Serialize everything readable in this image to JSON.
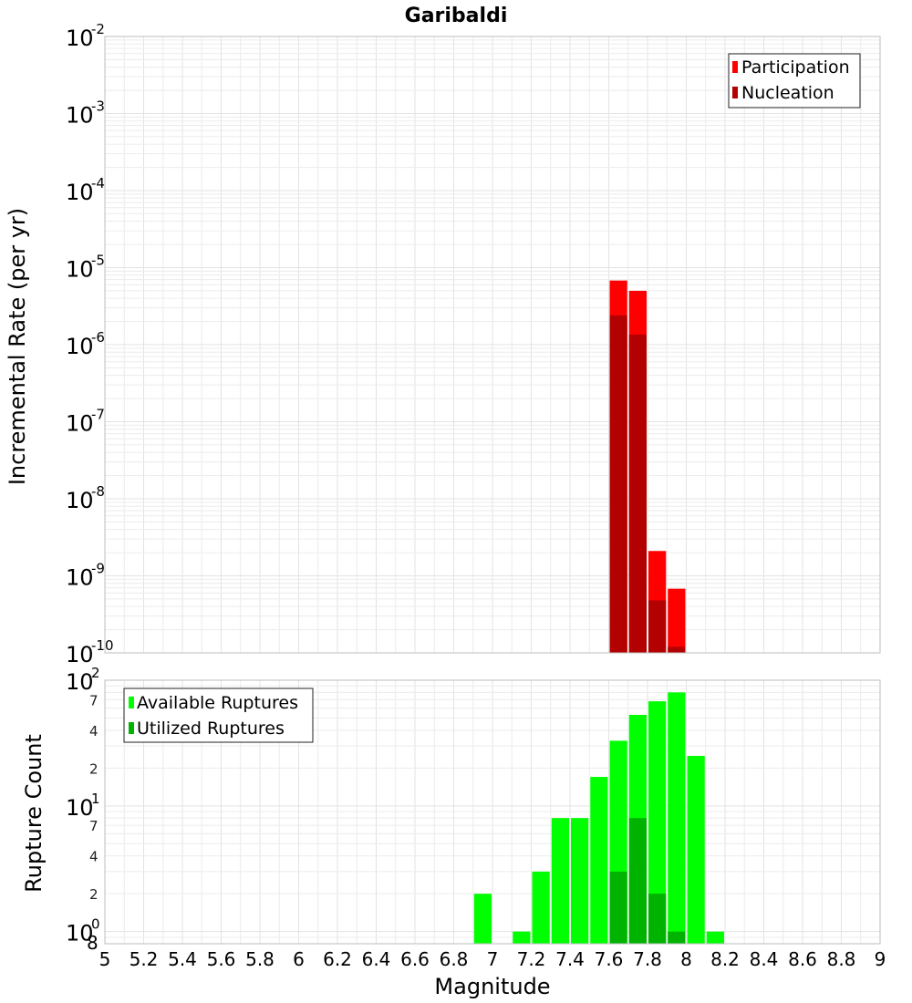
{
  "chart_data": [
    {
      "type": "bar",
      "title": "Garibaldi",
      "xlabel": "",
      "ylabel": "Incremental Rate (per yr)",
      "yscale": "log",
      "ylim": [
        1e-10,
        0.01
      ],
      "xlim": [
        5,
        9
      ],
      "bin_width": 0.1,
      "grid": true,
      "legend_position": "top-right",
      "y_decades": [
        -10,
        -9,
        -8,
        -7,
        -6,
        -5,
        -4,
        -3,
        -2
      ],
      "series": [
        {
          "name": "Participation",
          "color": "#ff0000",
          "x": [
            7.65,
            7.75,
            7.85,
            7.95
          ],
          "values": [
            6.8e-06,
            5e-06,
            2.1e-09,
            6.8e-10
          ]
        },
        {
          "name": "Nucleation",
          "color": "#b30000",
          "x": [
            7.65,
            7.75,
            7.85,
            7.95
          ],
          "values": [
            2.4e-06,
            1.35e-06,
            4.8e-10,
            1.2e-10
          ]
        }
      ]
    },
    {
      "type": "bar",
      "title": "",
      "xlabel": "Magnitude",
      "ylabel": "Rupture Count",
      "yscale": "log",
      "ylim": [
        0.8,
        100
      ],
      "xlim": [
        5,
        9
      ],
      "bin_width": 0.1,
      "grid": true,
      "legend_position": "top-left",
      "y_decades": [
        0,
        1,
        2
      ],
      "y_minor_ticks": [
        {
          "value": 0.8,
          "label": "8"
        },
        {
          "value": 2,
          "label": "2"
        },
        {
          "value": 4,
          "label": "4"
        },
        {
          "value": 7,
          "label": "7"
        },
        {
          "value": 20,
          "label": "2"
        },
        {
          "value": 40,
          "label": "4"
        },
        {
          "value": 70,
          "label": "7"
        }
      ],
      "x_ticks": [
        "5",
        "5.2",
        "5.4",
        "5.6",
        "5.8",
        "6",
        "6.2",
        "6.4",
        "6.6",
        "6.8",
        "7",
        "7.2",
        "7.4",
        "7.6",
        "7.8",
        "8",
        "8.2",
        "8.4",
        "8.6",
        "8.8",
        "9"
      ],
      "series": [
        {
          "name": "Available Ruptures",
          "color": "#00ff00",
          "x": [
            6.95,
            7.15,
            7.25,
            7.35,
            7.45,
            7.55,
            7.65,
            7.75,
            7.85,
            7.95,
            8.05,
            8.15
          ],
          "values": [
            2,
            1,
            3,
            8,
            8,
            17,
            33,
            53,
            68,
            80,
            25,
            1
          ]
        },
        {
          "name": "Utilized Ruptures",
          "color": "#00b300",
          "x": [
            7.65,
            7.75,
            7.85,
            7.95
          ],
          "values": [
            3,
            8,
            2,
            1
          ]
        }
      ]
    }
  ]
}
